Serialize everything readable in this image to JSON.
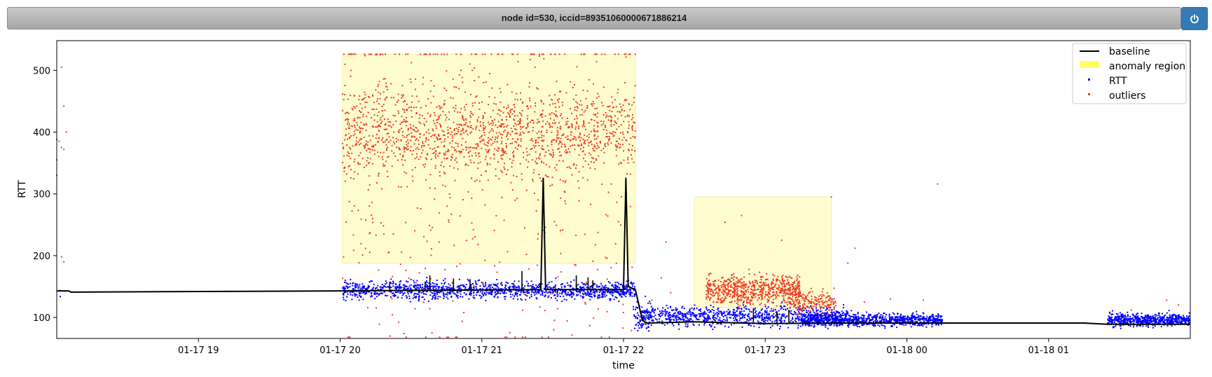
{
  "header": {
    "title": "node id=530, iccid=89351060000671886214",
    "power_icon": "power-icon"
  },
  "colors": {
    "baseline": "#000000",
    "anomaly_fill": "#fffdd0",
    "anomaly_legend": "#ffff66",
    "rtt": "#0000ff",
    "outliers": "#f03c24",
    "button": "#337ab7"
  },
  "chart_data": {
    "type": "scatter",
    "xlabel": "time",
    "ylabel": "RTT",
    "x_range_hours": [
      18.0,
      26.0
    ],
    "x_ticks": [
      {
        "h": 19,
        "label": "01-17 19"
      },
      {
        "h": 20,
        "label": "01-17 20"
      },
      {
        "h": 21,
        "label": "01-17 21"
      },
      {
        "h": 22,
        "label": "01-17 22"
      },
      {
        "h": 23,
        "label": "01-17 23"
      },
      {
        "h": 24,
        "label": "01-18 00"
      },
      {
        "h": 25,
        "label": "01-18 01"
      }
    ],
    "ylim": [
      66,
      548
    ],
    "y_ticks": [
      100,
      200,
      300,
      400,
      500
    ],
    "legend": {
      "position": "top-right",
      "entries": [
        "baseline",
        "anomaly region",
        "RTT",
        "outliers"
      ]
    },
    "anomaly_regions": [
      {
        "start": "01-17 20:01",
        "end": "01-17 22:05",
        "ymin": 188,
        "ymax": 526
      },
      {
        "start": "01-17 22:30",
        "end": "01-17 23:28",
        "ymin": 116,
        "ymax": 295
      }
    ],
    "baseline": [
      [
        "01-17 18:00",
        143
      ],
      [
        "01-17 18:05",
        143
      ],
      [
        "01-17 18:06",
        141
      ],
      [
        "01-17 20:00",
        143
      ],
      [
        "01-17 21:25",
        145
      ],
      [
        "01-17 21:26",
        326
      ],
      [
        "01-17 21:27",
        145
      ],
      [
        "01-17 22:00",
        145
      ],
      [
        "01-17 22:01",
        326
      ],
      [
        "01-17 22:02",
        150
      ],
      [
        "01-17 22:05",
        145
      ],
      [
        "01-17 22:08",
        95
      ],
      [
        "01-17 22:10",
        91
      ],
      [
        "01-17 22:30",
        93
      ],
      [
        "01-17 23:00",
        90
      ],
      [
        "01-17 23:30",
        91
      ],
      [
        "01-18 00:00",
        91
      ],
      [
        "01-18 00:15",
        91
      ],
      [
        "01-18 01:15",
        91
      ],
      [
        "01-18 01:25",
        89
      ],
      [
        "01-18 02:00",
        89
      ]
    ],
    "baseline_spikes": [
      [
        "01-17 20:21",
        158
      ],
      [
        "01-17 20:36",
        158
      ],
      [
        "01-17 20:38",
        168
      ],
      [
        "01-17 20:48",
        163
      ],
      [
        "01-17 20:55",
        162
      ],
      [
        "01-17 21:17",
        175
      ],
      [
        "01-17 21:40",
        168
      ],
      [
        "01-17 21:45",
        165
      ],
      [
        "01-17 21:47",
        160
      ],
      [
        "01-17 22:55",
        115
      ],
      [
        "01-17 23:05",
        110
      ],
      [
        "01-17 23:10",
        112
      ]
    ],
    "rtt_clusters": [
      {
        "start": "01-17 18:00",
        "end": "01-17 18:02",
        "count": 3,
        "center": 135,
        "spread": 8
      },
      {
        "start": "01-17 20:01",
        "end": "01-17 22:05",
        "count": 1300,
        "center": 144,
        "spread": 7
      },
      {
        "start": "01-17 22:04",
        "end": "01-17 22:12",
        "count": 60,
        "center": 105,
        "spread": 12
      },
      {
        "start": "01-17 22:07",
        "end": "01-17 23:35",
        "count": 900,
        "center": 102,
        "spread": 8
      },
      {
        "start": "01-17 23:15",
        "end": "01-18 00:15",
        "count": 900,
        "center": 96,
        "spread": 5
      },
      {
        "start": "01-18 01:25",
        "end": "01-18 02:00",
        "count": 600,
        "center": 96,
        "spread": 5
      }
    ],
    "outlier_clusters": [
      {
        "start": "01-17 20:01",
        "end": "01-17 22:05",
        "count": 1400,
        "center": 400,
        "spread": 35
      },
      {
        "start": "01-17 20:01",
        "end": "01-17 22:05",
        "count": 500,
        "center": 360,
        "spread": 160
      },
      {
        "start": "01-17 22:35",
        "end": "01-17 23:15",
        "count": 700,
        "center": 145,
        "spread": 12
      },
      {
        "start": "01-17 23:10",
        "end": "01-17 23:30",
        "count": 200,
        "center": 125,
        "spread": 10
      }
    ],
    "outlier_points": [
      [
        "01-17 18:00",
        388
      ],
      [
        "01-17 18:00",
        355
      ],
      [
        "01-17 18:00",
        330
      ],
      [
        "01-17 18:01",
        385
      ],
      [
        "01-17 18:02",
        375
      ],
      [
        "01-17 18:03",
        372
      ],
      [
        "01-17 18:04",
        400
      ],
      [
        "01-17 18:02",
        505
      ],
      [
        "01-17 18:03",
        442
      ],
      [
        "01-17 18:02",
        198
      ],
      [
        "01-17 18:03",
        190
      ],
      [
        "01-17 22:18",
        222
      ],
      [
        "01-17 22:16",
        164
      ],
      [
        "01-17 22:12",
        128
      ],
      [
        "01-17 22:20",
        140
      ],
      [
        "01-17 22:43",
        254
      ],
      [
        "01-17 22:50",
        265
      ],
      [
        "01-17 23:07",
        225
      ],
      [
        "01-17 23:28",
        295
      ],
      [
        "01-17 23:38",
        212
      ],
      [
        "01-17 23:35",
        188
      ],
      [
        "01-17 23:42",
        125
      ],
      [
        "01-17 23:53",
        130
      ],
      [
        "01-18 00:07",
        128
      ],
      [
        "01-18 00:13",
        316
      ],
      [
        "01-18 01:35",
        112
      ],
      [
        "01-18 01:50",
        128
      ],
      [
        "01-18 01:55",
        120
      ]
    ]
  }
}
